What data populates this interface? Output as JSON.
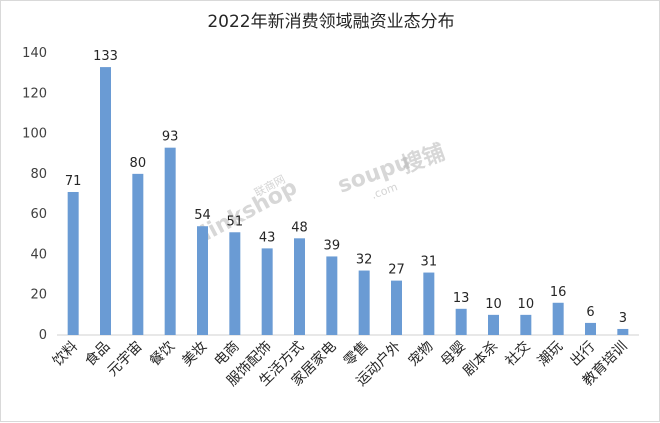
{
  "chart_data": {
    "type": "bar",
    "title": "2022年新消费领域融资业态分布",
    "categories": [
      "饮料",
      "食品",
      "元宇宙",
      "餐饮",
      "美妆",
      "电商",
      "服饰配饰",
      "生活方式",
      "家居家电",
      "零售",
      "运动户外",
      "宠物",
      "母婴",
      "剧本杀",
      "社交",
      "潮玩",
      "出行",
      "教育培训"
    ],
    "values": [
      71,
      133,
      80,
      93,
      54,
      51,
      43,
      48,
      39,
      32,
      27,
      31,
      13,
      10,
      10,
      16,
      6,
      3
    ],
    "xlabel": "",
    "ylabel": "",
    "ylim": [
      0,
      140
    ],
    "yticks": [
      0,
      20,
      40,
      60,
      80,
      100,
      120,
      140
    ],
    "grid": false,
    "legend": "none",
    "bar_color": "#6a9bd4"
  },
  "watermarks": {
    "linkshop": "linkshop",
    "linkshop_cn": "联商网",
    "soupu": "soupu",
    "soupu_cn": "搜铺",
    "soupu_domain": ".com"
  }
}
